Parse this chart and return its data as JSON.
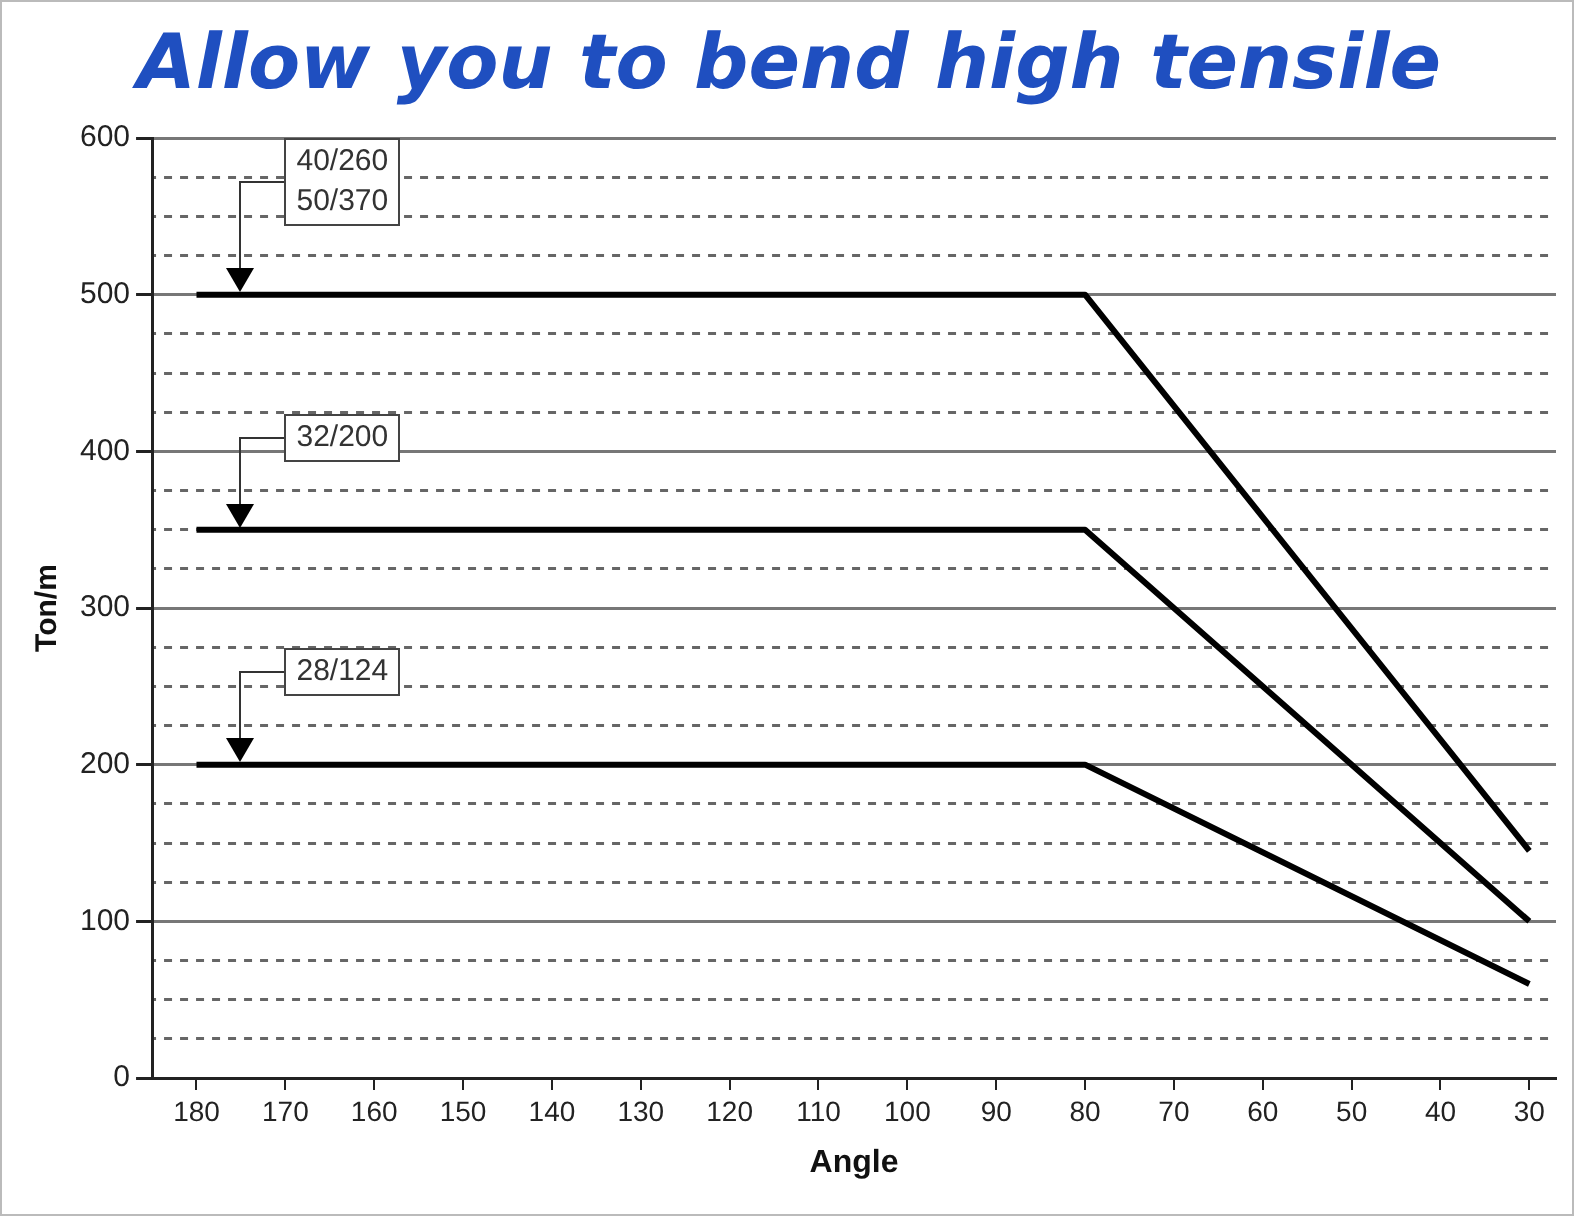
{
  "chart_data": {
    "type": "line",
    "title": "Allow you to bend high tensile",
    "xlabel": "Angle",
    "ylabel": "Ton/m",
    "xlim": [
      185,
      27
    ],
    "xticks": [
      180,
      170,
      160,
      150,
      140,
      130,
      120,
      110,
      100,
      90,
      80,
      70,
      60,
      50,
      40,
      30
    ],
    "ylim": [
      0,
      600
    ],
    "yticks": [
      0,
      {
        "value": 25,
        "label": null
      },
      {
        "value": 50,
        "label": null
      },
      {
        "value": 75,
        "label": null
      },
      100,
      {
        "value": 125,
        "label": null
      },
      {
        "value": 150,
        "label": null
      },
      {
        "value": 175,
        "label": null
      },
      200,
      {
        "value": 225,
        "label": null
      },
      {
        "value": 250,
        "label": null
      },
      {
        "value": 275,
        "label": null
      },
      300,
      {
        "value": 325,
        "label": null
      },
      {
        "value": 350,
        "label": null
      },
      {
        "value": 375,
        "label": null
      },
      400,
      {
        "value": 425,
        "label": null
      },
      {
        "value": 450,
        "label": null
      },
      {
        "value": 475,
        "label": null
      },
      500,
      {
        "value": 525,
        "label": null
      },
      {
        "value": 550,
        "label": null
      },
      {
        "value": 575,
        "label": null
      },
      600
    ],
    "grid": "y",
    "legend": false,
    "marker": "none",
    "line_style": "solid",
    "series": [
      {
        "color": "#000000",
        "x": [
          180,
          80,
          30
        ],
        "values": [
          500,
          500,
          145
        ]
      },
      {
        "color": "#000000",
        "x": [
          180,
          80,
          30
        ],
        "values": [
          350,
          350,
          100
        ]
      },
      {
        "color": "#000000",
        "x": [
          180,
          80,
          30
        ],
        "values": [
          200,
          200,
          60
        ]
      }
    ],
    "annotations": [
      "40/260\n50/370",
      "32/200",
      "28/124"
    ]
  }
}
